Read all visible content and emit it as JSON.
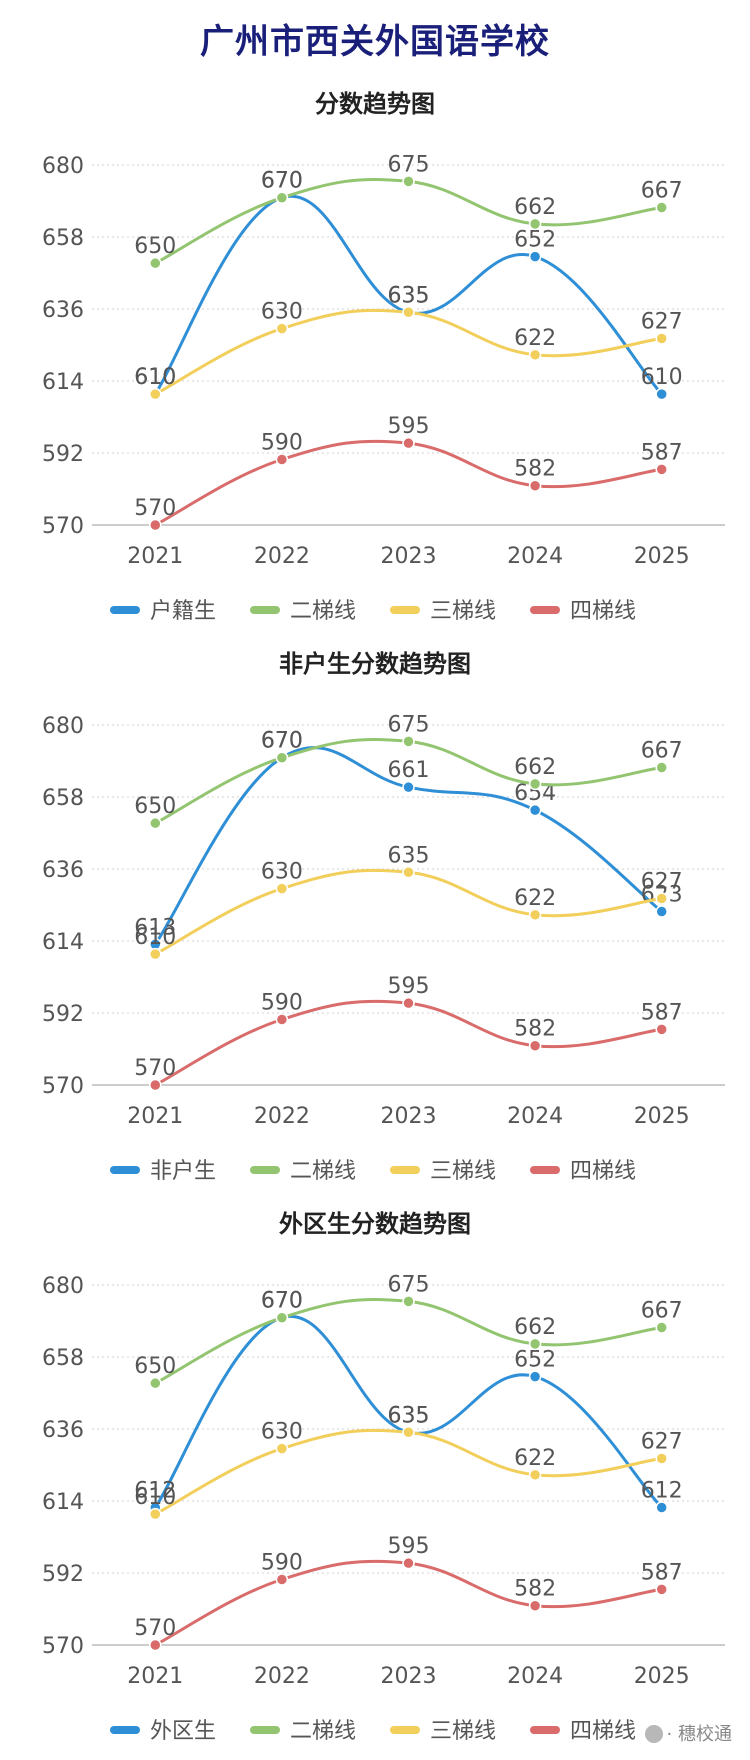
{
  "page_title": "广州市西关外国语学校",
  "watermark": "· 穗校通",
  "colors": {
    "blue": "#2f8fd6",
    "green": "#93c571",
    "yellow": "#f2ce5a",
    "red": "#d96b6b",
    "grid": "#d0d0d0",
    "axis": "#bbbbbb",
    "text": "#555555"
  },
  "chart_data": [
    {
      "type": "line",
      "title": "分数趋势图",
      "categories": [
        "2021",
        "2022",
        "2023",
        "2024",
        "2025"
      ],
      "yticks": [
        570,
        592,
        614,
        636,
        658,
        680
      ],
      "ylim": [
        570,
        680
      ],
      "smooth": true,
      "legend_position": "bottom",
      "series": [
        {
          "name": "户籍生",
          "color": "#2f8fd6",
          "values": [
            610,
            670,
            635,
            652,
            610
          ]
        },
        {
          "name": "二梯线",
          "color": "#93c571",
          "values": [
            650,
            670,
            675,
            662,
            667
          ]
        },
        {
          "name": "三梯线",
          "color": "#f2ce5a",
          "values": [
            610,
            630,
            635,
            622,
            627
          ]
        },
        {
          "name": "四梯线",
          "color": "#d96b6b",
          "values": [
            570,
            590,
            595,
            582,
            587
          ]
        }
      ]
    },
    {
      "type": "line",
      "title": "非户生分数趋势图",
      "categories": [
        "2021",
        "2022",
        "2023",
        "2024",
        "2025"
      ],
      "yticks": [
        570,
        592,
        614,
        636,
        658,
        680
      ],
      "ylim": [
        570,
        680
      ],
      "smooth": true,
      "legend_position": "bottom",
      "series": [
        {
          "name": "非户生",
          "color": "#2f8fd6",
          "values": [
            613,
            670,
            661,
            654,
            623
          ]
        },
        {
          "name": "二梯线",
          "color": "#93c571",
          "values": [
            650,
            670,
            675,
            662,
            667
          ]
        },
        {
          "name": "三梯线",
          "color": "#f2ce5a",
          "values": [
            610,
            630,
            635,
            622,
            627
          ]
        },
        {
          "name": "四梯线",
          "color": "#d96b6b",
          "values": [
            570,
            590,
            595,
            582,
            587
          ]
        }
      ]
    },
    {
      "type": "line",
      "title": "外区生分数趋势图",
      "categories": [
        "2021",
        "2022",
        "2023",
        "2024",
        "2025"
      ],
      "yticks": [
        570,
        592,
        614,
        636,
        658,
        680
      ],
      "ylim": [
        570,
        680
      ],
      "smooth": true,
      "legend_position": "bottom",
      "series": [
        {
          "name": "外区生",
          "color": "#2f8fd6",
          "values": [
            612,
            670,
            635,
            652,
            612
          ]
        },
        {
          "name": "二梯线",
          "color": "#93c571",
          "values": [
            650,
            670,
            675,
            662,
            667
          ]
        },
        {
          "name": "三梯线",
          "color": "#f2ce5a",
          "values": [
            610,
            630,
            635,
            622,
            627
          ]
        },
        {
          "name": "四梯线",
          "color": "#d96b6b",
          "values": [
            570,
            590,
            595,
            582,
            587
          ]
        }
      ]
    }
  ]
}
